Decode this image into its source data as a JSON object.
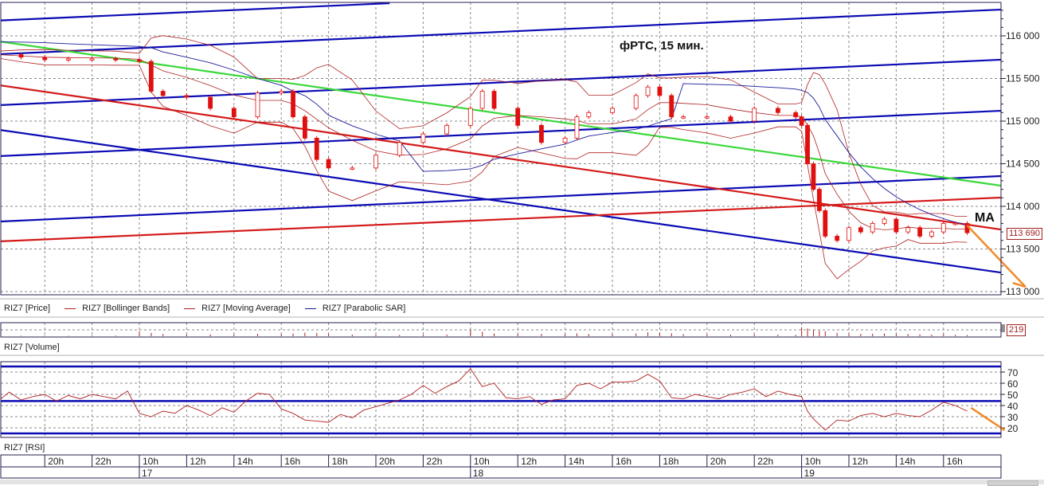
{
  "colors": {
    "grid": "#8a8a8a",
    "frame": "#2b1d4d",
    "candle_down": "#e01010",
    "candle_up_border": "#e01010",
    "bollinger": "#b02020",
    "sar": "#1a1a9a",
    "trend_blue": "#0a0ab4",
    "trend_green": "#3ad83a",
    "trend_red": "#d41a1a",
    "rsi_line": "#b02020",
    "annotation_orange": "#f08a2a"
  },
  "annotations": {
    "title": "фРТС, 15 мин.",
    "ma_label": "MA"
  },
  "legend": {
    "price": "RIZ7 [Price]",
    "bollinger": "RIZ7 [Bollinger Bands]",
    "moving_average": "RIZ7 [Moving Average]",
    "parabolic_sar": "RIZ7 [Parabolic SAR]"
  },
  "panels": {
    "volume_label": "RIZ7 [Volume]",
    "rsi_label": "RIZ7 [RSI]",
    "last_price": "113 690",
    "last_volume": "219"
  },
  "chart_data": [
    {
      "type": "candlestick",
      "title": "фРТС, 15 мин.",
      "instrument": "RIZ7",
      "price_axis": {
        "range": [
          113000,
          116300
        ],
        "ticks": [
          "113 000",
          "113 500",
          "114 000",
          "114 500",
          "115 000",
          "115 500",
          "116 000"
        ],
        "tick_values": [
          113000,
          113500,
          114000,
          114500,
          115000,
          115500,
          116000
        ]
      },
      "grid": true,
      "close": [
        [
          "16 18:00",
          115780
        ],
        [
          "16 19:00",
          115750
        ],
        [
          "16 20:00",
          115720
        ],
        [
          "16 21:00",
          115730
        ],
        [
          "16 22:00",
          115730
        ],
        [
          "16 23:00",
          115720
        ],
        [
          "17 10:00",
          115700
        ],
        [
          "17 10:30",
          115350
        ],
        [
          "17 11:00",
          115300
        ],
        [
          "17 12:00",
          115280
        ],
        [
          "17 13:00",
          115150
        ],
        [
          "17 14:00",
          115050
        ],
        [
          "17 15:00",
          115330
        ],
        [
          "17 16:00",
          115350
        ],
        [
          "17 16:30",
          115050
        ],
        [
          "17 17:00",
          114800
        ],
        [
          "17 17:30",
          114550
        ],
        [
          "17 18:00",
          114450
        ],
        [
          "17 19:00",
          114450
        ],
        [
          "17 20:00",
          114600
        ],
        [
          "17 21:00",
          114750
        ],
        [
          "17 22:00",
          114850
        ],
        [
          "17 23:00",
          114950
        ],
        [
          "18 10:00",
          115150
        ],
        [
          "18 10:30",
          115350
        ],
        [
          "18 11:00",
          115150
        ],
        [
          "18 12:00",
          114950
        ],
        [
          "18 13:00",
          114750
        ],
        [
          "18 14:00",
          114800
        ],
        [
          "18 14:30",
          115050
        ],
        [
          "18 15:00",
          115100
        ],
        [
          "18 16:00",
          115150
        ],
        [
          "18 17:00",
          115300
        ],
        [
          "18 17:30",
          115400
        ],
        [
          "18 18:00",
          115300
        ],
        [
          "18 18:30",
          115050
        ],
        [
          "18 19:00",
          115050
        ],
        [
          "18 20:00",
          115050
        ],
        [
          "18 21:00",
          115000
        ],
        [
          "18 22:00",
          115150
        ],
        [
          "18 23:00",
          115100
        ],
        [
          "18 23:45",
          115050
        ],
        [
          "19 10:00",
          114950
        ],
        [
          "19 10:15",
          114500
        ],
        [
          "19 10:30",
          114200
        ],
        [
          "19 10:45",
          113950
        ],
        [
          "19 11:00",
          113650
        ],
        [
          "19 11:30",
          113600
        ],
        [
          "19 12:00",
          113750
        ],
        [
          "19 12:30",
          113700
        ],
        [
          "19 13:00",
          113800
        ],
        [
          "19 13:30",
          113850
        ],
        [
          "19 14:00",
          113700
        ],
        [
          "19 14:30",
          113750
        ],
        [
          "19 15:00",
          113650
        ],
        [
          "19 15:30",
          113700
        ],
        [
          "19 16:00",
          113800
        ],
        [
          "19 16:30",
          113800
        ],
        [
          "19 17:00",
          113690
        ]
      ],
      "volume": [
        120,
        90,
        110,
        80,
        150,
        100,
        900,
        600,
        400,
        300,
        350,
        280,
        420,
        380,
        500,
        650,
        600,
        420,
        300,
        260,
        240,
        260,
        300,
        1100,
        800,
        500,
        380,
        420,
        360,
        520,
        400,
        380,
        500,
        700,
        600,
        520,
        380,
        300,
        280,
        320,
        300,
        260,
        1600,
        1400,
        1200,
        1000,
        900,
        600,
        500,
        420,
        460,
        500,
        380,
        400,
        350,
        300,
        380,
        260,
        219
      ],
      "trendlines": [
        {
          "color": "blue",
          "from": [
            "16 18:05",
            116180
          ],
          "to": [
            "17 20:35",
            116383
          ]
        },
        {
          "color": "blue",
          "from": [
            "16 18:05",
            115785
          ],
          "to": [
            "19 18:25",
            116308
          ]
        },
        {
          "color": "blue",
          "from": [
            "16 18:05",
            115187
          ],
          "to": [
            "19 18:25",
            115720
          ]
        },
        {
          "color": "blue",
          "from": [
            "16 18:05",
            114589
          ],
          "to": [
            "19 18:25",
            115121
          ]
        },
        {
          "color": "blue",
          "from": [
            "16 18:05",
            113822
          ],
          "to": [
            "19 18:25",
            114355
          ]
        },
        {
          "color": "blue",
          "from": [
            "16 18:05",
            114897
          ],
          "to": [
            "19 18:25",
            113224
          ]
        },
        {
          "color": "green",
          "from": [
            "16 18:05",
            115935
          ],
          "to": [
            "19 18:25",
            114243
          ]
        },
        {
          "color": "red",
          "from": [
            "16 18:05",
            115421
          ],
          "to": [
            "19 18:25",
            113729
          ]
        },
        {
          "color": "red",
          "from": [
            "16 18:05",
            113589
          ],
          "to": [
            "19 18:25",
            114103
          ]
        }
      ],
      "forecast_arrow": {
        "from": [
          "19 17:00",
          113776
        ],
        "to": [
          "19 19:28",
          113056
        ]
      }
    },
    {
      "type": "line",
      "name": "RIZ7 [RSI]",
      "y_axis": {
        "ticks": [
          20,
          30,
          40,
          50,
          60,
          70
        ]
      },
      "levels": [
        75,
        44,
        15
      ],
      "values": [
        [
          "16 18:05",
          45
        ],
        [
          "16 18:30",
          52
        ],
        [
          "16 19:00",
          45
        ],
        [
          "16 19:30",
          48
        ],
        [
          "16 20:00",
          50
        ],
        [
          "16 20:30",
          44
        ],
        [
          "16 21:00",
          49
        ],
        [
          "16 21:30",
          46
        ],
        [
          "16 22:00",
          50
        ],
        [
          "16 22:30",
          48
        ],
        [
          "16 23:00",
          46
        ],
        [
          "16 23:30",
          53
        ],
        [
          "17 10:00",
          33
        ],
        [
          "17 10:30",
          30
        ],
        [
          "17 11:00",
          35
        ],
        [
          "17 11:30",
          33
        ],
        [
          "17 12:00",
          40
        ],
        [
          "17 12:30",
          36
        ],
        [
          "17 13:00",
          31
        ],
        [
          "17 13:30",
          38
        ],
        [
          "17 14:00",
          34
        ],
        [
          "17 14:30",
          44
        ],
        [
          "17 15:00",
          51
        ],
        [
          "17 15:30",
          50
        ],
        [
          "17 16:00",
          37
        ],
        [
          "17 16:30",
          33
        ],
        [
          "17 17:00",
          27
        ],
        [
          "17 17:30",
          26
        ],
        [
          "17 18:00",
          25
        ],
        [
          "17 18:30",
          32
        ],
        [
          "17 19:00",
          29
        ],
        [
          "17 19:30",
          36
        ],
        [
          "17 20:00",
          39
        ],
        [
          "17 20:30",
          42
        ],
        [
          "17 21:00",
          45
        ],
        [
          "17 21:30",
          50
        ],
        [
          "17 22:00",
          58
        ],
        [
          "17 22:30",
          51
        ],
        [
          "17 23:00",
          57
        ],
        [
          "17 23:30",
          62
        ],
        [
          "18 10:00",
          73
        ],
        [
          "18 10:30",
          57
        ],
        [
          "18 11:00",
          60
        ],
        [
          "18 11:30",
          47
        ],
        [
          "18 12:00",
          46
        ],
        [
          "18 12:30",
          48
        ],
        [
          "18 13:00",
          41
        ],
        [
          "18 13:30",
          45
        ],
        [
          "18 14:00",
          46
        ],
        [
          "18 14:30",
          58
        ],
        [
          "18 15:00",
          60
        ],
        [
          "18 15:30",
          55
        ],
        [
          "18 16:00",
          61
        ],
        [
          "18 16:30",
          61
        ],
        [
          "18 17:00",
          62
        ],
        [
          "18 17:30",
          68
        ],
        [
          "18 18:00",
          62
        ],
        [
          "18 18:30",
          47
        ],
        [
          "18 19:00",
          46
        ],
        [
          "18 19:30",
          50
        ],
        [
          "18 20:00",
          48
        ],
        [
          "18 20:30",
          46
        ],
        [
          "18 21:00",
          50
        ],
        [
          "18 21:30",
          52
        ],
        [
          "18 22:00",
          55
        ],
        [
          "18 22:30",
          48
        ],
        [
          "18 23:00",
          53
        ],
        [
          "18 23:30",
          50
        ],
        [
          "19 10:00",
          48
        ],
        [
          "19 10:15",
          35
        ],
        [
          "19 10:30",
          28
        ],
        [
          "19 11:00",
          18
        ],
        [
          "19 11:30",
          27
        ],
        [
          "19 12:00",
          26
        ],
        [
          "19 12:30",
          31
        ],
        [
          "19 13:00",
          33
        ],
        [
          "19 13:30",
          30
        ],
        [
          "19 14:00",
          33
        ],
        [
          "19 14:30",
          31
        ],
        [
          "19 15:00",
          30
        ],
        [
          "19 15:30",
          36
        ],
        [
          "19 16:00",
          43
        ],
        [
          "19 16:30",
          40
        ],
        [
          "19 17:00",
          35
        ]
      ],
      "forecast_arrow": {
        "from": [
          "19 17:10",
          37.9
        ],
        "to": [
          "19 18:35",
          17.9
        ]
      }
    }
  ],
  "time_axis": {
    "hours": [
      {
        "label": "20h",
        "time": "16 20:00"
      },
      {
        "label": "22h",
        "time": "16 22:00"
      },
      {
        "label": "10h",
        "time": "17 10:00"
      },
      {
        "label": "12h",
        "time": "17 12:00"
      },
      {
        "label": "14h",
        "time": "17 14:00"
      },
      {
        "label": "16h",
        "time": "17 16:00"
      },
      {
        "label": "18h",
        "time": "17 18:00"
      },
      {
        "label": "20h",
        "time": "17 20:00"
      },
      {
        "label": "22h",
        "time": "17 22:00"
      },
      {
        "label": "10h",
        "time": "18 10:00"
      },
      {
        "label": "12h",
        "time": "18 12:00"
      },
      {
        "label": "14h",
        "time": "18 14:00"
      },
      {
        "label": "16h",
        "time": "18 16:00"
      },
      {
        "label": "18h",
        "time": "18 18:00"
      },
      {
        "label": "20h",
        "time": "18 20:00"
      },
      {
        "label": "22h",
        "time": "18 22:00"
      },
      {
        "label": "10h",
        "time": "19 10:00"
      },
      {
        "label": "12h",
        "time": "19 12:00"
      },
      {
        "label": "14h",
        "time": "19 14:00"
      },
      {
        "label": "16h",
        "time": "19 16:00"
      }
    ],
    "dates": [
      {
        "label": "17",
        "time": "17 10:00"
      },
      {
        "label": "18",
        "time": "18 10:00"
      },
      {
        "label": "19",
        "time": "19 10:00"
      }
    ]
  }
}
